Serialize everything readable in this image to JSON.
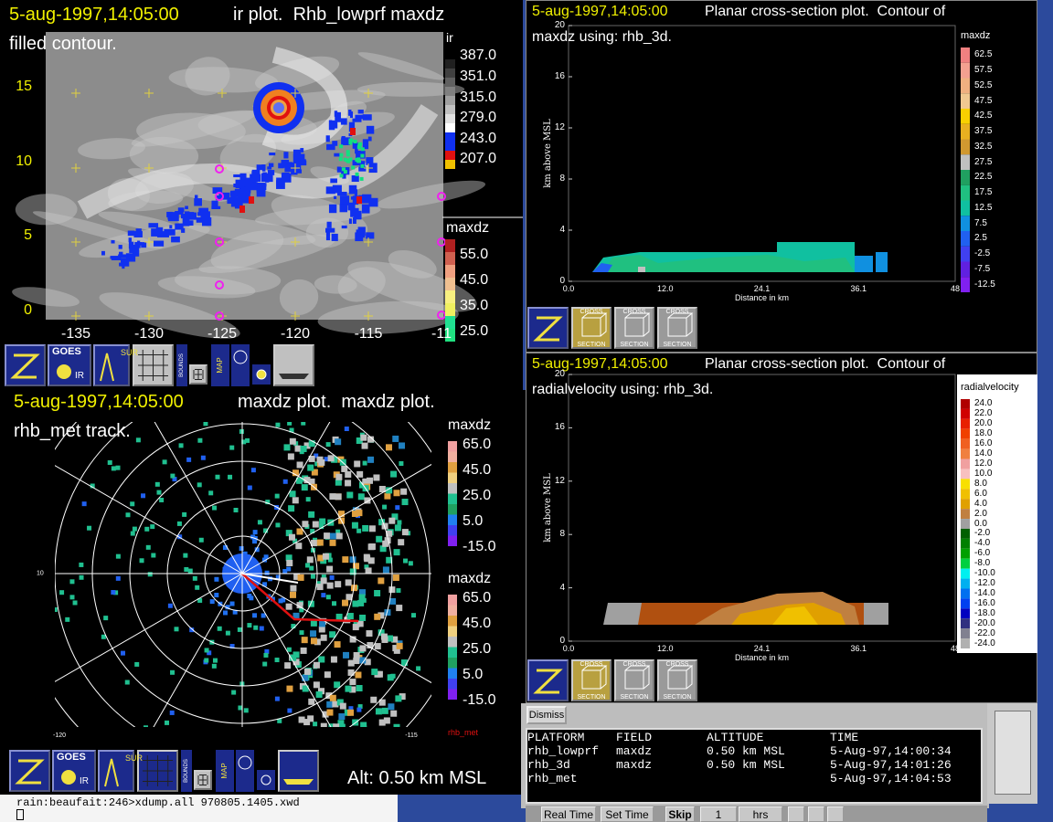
{
  "ir_window": {
    "timestamp": "5-aug-1997,14:05:00",
    "title": "ir plot.  Rhb_lowprf maxdz",
    "subtitle": "filled contour.",
    "y_labels": [
      "15",
      "10",
      "5",
      "0"
    ],
    "x_labels": [
      "-135",
      "-130",
      "-125",
      "-120",
      "-115",
      "-11"
    ],
    "ir_legend": {
      "title": "ir",
      "labels": [
        "387.0",
        "351.0",
        "315.0",
        "279.0",
        "243.0",
        "207.0"
      ]
    },
    "maxdz_legend": {
      "title": "maxdz",
      "labels": [
        "55.0",
        "45.0",
        "35.0",
        "25.0"
      ]
    },
    "toolbar": {
      "goes": "GOES",
      "ir": "IR",
      "sur": "SUR",
      "bounds": "BOUNDS",
      "map": "MAP"
    }
  },
  "maxdz_section": {
    "timestamp": "5-aug-1997,14:05:00",
    "title": "Planar cross-section plot.  Contour of",
    "subtitle": "maxdz using: rhb_3d.",
    "y_label": "km above MSL",
    "x_label": "Distance in km",
    "y_ticks": [
      "20",
      "16",
      "12",
      "8",
      "4",
      "0"
    ],
    "x_ticks": [
      "0.0",
      "12.0",
      "24.1",
      "36.1",
      "48"
    ],
    "legend": {
      "title": "maxdz",
      "labels": [
        "62.5",
        "57.5",
        "52.5",
        "47.5",
        "42.5",
        "37.5",
        "32.5",
        "27.5",
        "22.5",
        "17.5",
        "12.5",
        "7.5",
        "2.5",
        "-2.5",
        "-7.5",
        "-12.5"
      ]
    },
    "toolbar": {
      "top": "CROSS",
      "bottom": "SECTION"
    }
  },
  "radar_window": {
    "timestamp": "5-aug-1997,14:05:00",
    "title": "maxdz plot.  maxdz plot.",
    "subtitle": "rhb_met track.",
    "lat_label": "10",
    "lon_labels": [
      "-120",
      "-115"
    ],
    "legend_top": {
      "title": "maxdz",
      "labels": [
        "65.0",
        "45.0",
        "25.0",
        "5.0",
        "-15.0"
      ]
    },
    "legend_bottom": {
      "title": "maxdz",
      "labels": [
        "65.0",
        "45.0",
        "25.0",
        "5.0",
        "-15.0"
      ]
    },
    "track_label": "rhb_met",
    "altitude": "Alt: 0.50 km MSL",
    "toolbar": {
      "goes": "GOES",
      "ir": "IR",
      "sur": "SUR",
      "bounds": "BOUNDS",
      "map": "MAP"
    }
  },
  "velocity_section": {
    "timestamp": "5-aug-1997,14:05:00",
    "title": "Planar cross-section plot.  Contour of",
    "subtitle": "radialvelocity using: rhb_3d.",
    "y_label": "km above MSL",
    "x_label": "Distance in km",
    "y_ticks": [
      "20",
      "16",
      "12",
      "8",
      "4",
      "0"
    ],
    "x_ticks": [
      "0.0",
      "12.0",
      "24.1",
      "36.1",
      "48"
    ],
    "legend": {
      "title": "radialvelocity",
      "labels": [
        "24.0",
        "22.0",
        "20.0",
        "18.0",
        "16.0",
        "14.0",
        "12.0",
        "10.0",
        "8.0",
        "6.0",
        "4.0",
        "2.0",
        "0.0",
        "-2.0",
        "-4.0",
        "-6.0",
        "-8.0",
        "-10.0",
        "-12.0",
        "-14.0",
        "-16.0",
        "-18.0",
        "-20.0",
        "-22.0",
        "-24.0"
      ]
    },
    "toolbar": {
      "top": "CROSS",
      "bottom": "SECTION"
    }
  },
  "dialog": {
    "dismiss": "Dismiss",
    "headers": [
      "PLATFORM",
      "FIELD",
      "ALTITUDE",
      "TIME"
    ],
    "rows": [
      [
        "rhb_lowprf",
        "maxdz",
        "0.50 km MSL",
        "5-Aug-97,14:00:34"
      ],
      [
        "rhb_3d",
        "maxdz",
        "0.50 km MSL",
        "5-Aug-97,14:01:26"
      ],
      [
        "rhb_met",
        "",
        "",
        "5-Aug-97,14:04:53"
      ]
    ]
  },
  "terminal": {
    "prompt": "rain:beaufait:246>xdump.all 970805.1405.xwd"
  },
  "taskbar": {
    "real_time": "Real Time",
    "set_time": "Set Time",
    "skip": "Skip",
    "step": "1",
    "unit": "hrs"
  }
}
